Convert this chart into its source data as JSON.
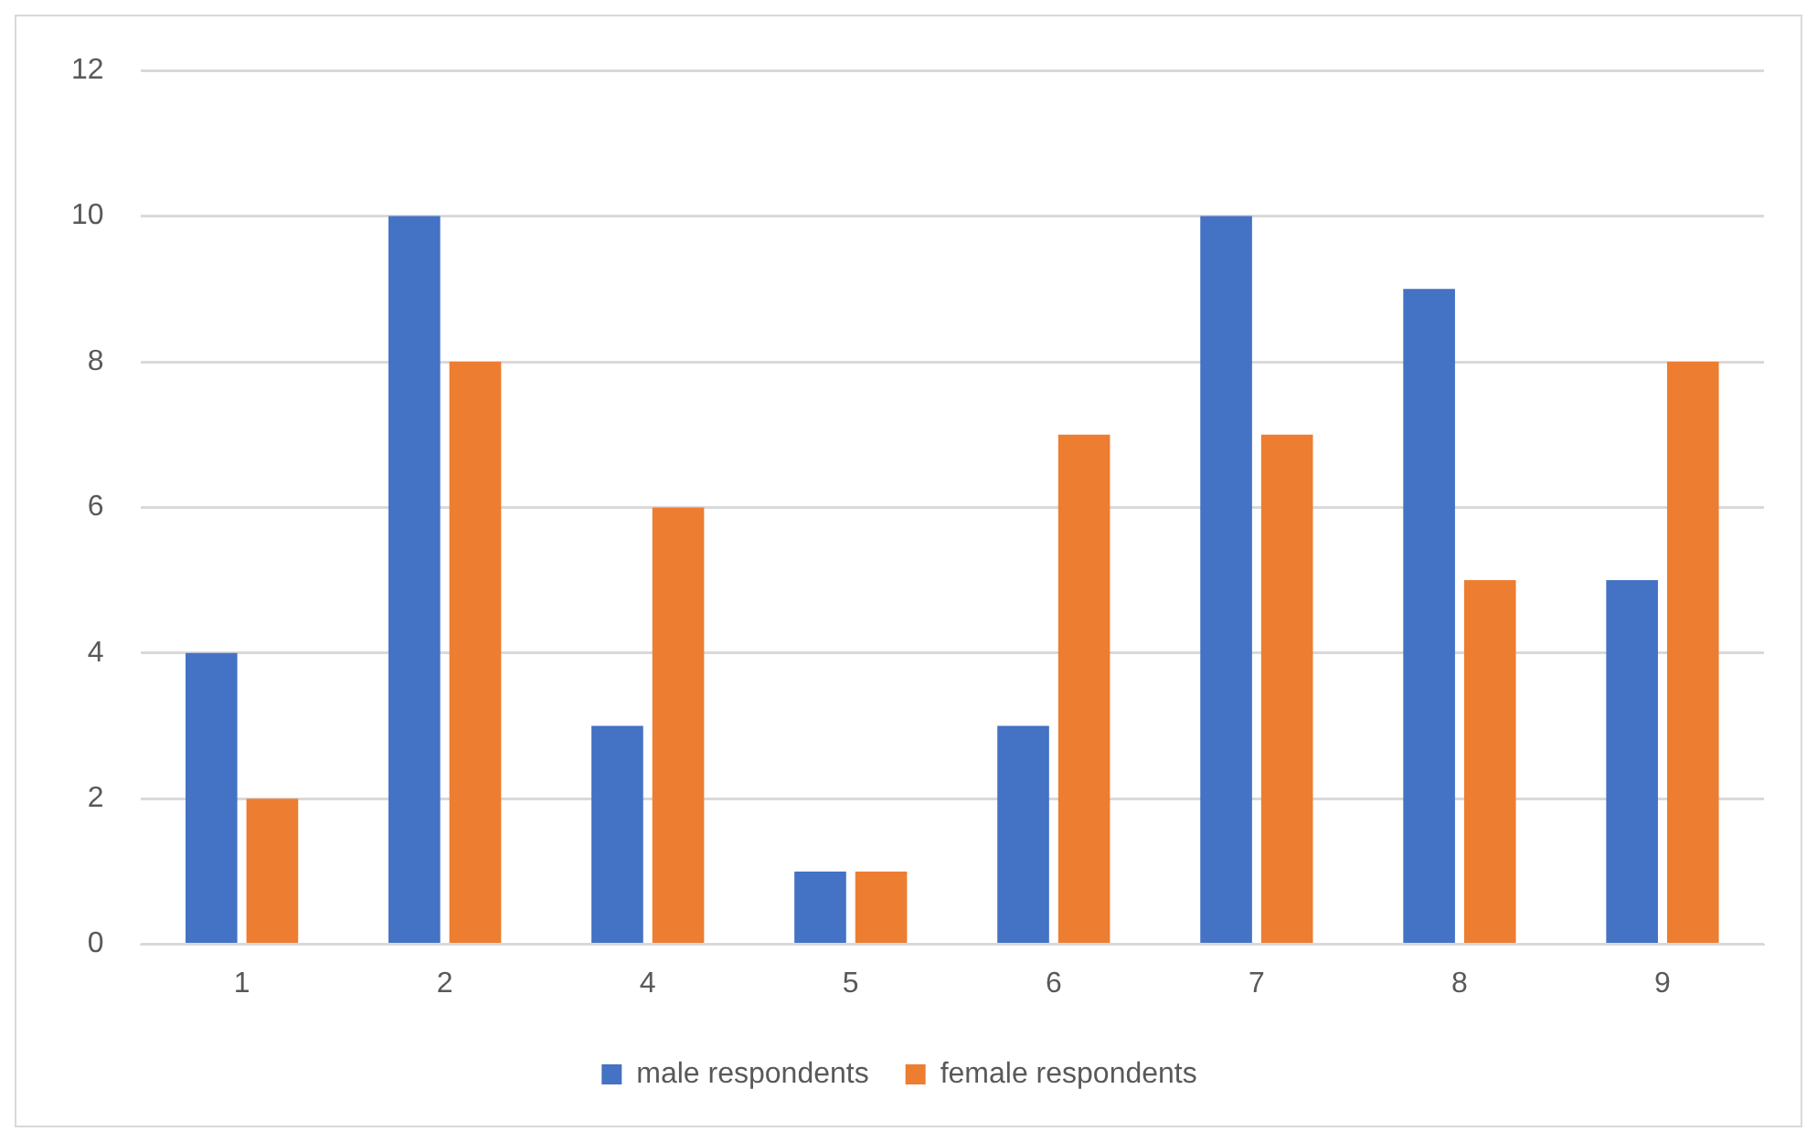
{
  "chart_data": {
    "type": "bar",
    "categories": [
      "1",
      "2",
      "4",
      "5",
      "6",
      "7",
      "8",
      "9"
    ],
    "series": [
      {
        "name": "male respondents",
        "color": "#4472c4",
        "values": [
          4,
          10,
          3,
          1,
          3,
          10,
          9,
          5
        ]
      },
      {
        "name": "female respondents",
        "color": "#ed7d31",
        "values": [
          2,
          8,
          6,
          1,
          7,
          7,
          5,
          8
        ]
      }
    ],
    "ylim": [
      0,
      12
    ],
    "yticks": [
      0,
      2,
      4,
      6,
      8,
      10,
      12
    ],
    "grid": "y",
    "legend": "bottom"
  }
}
